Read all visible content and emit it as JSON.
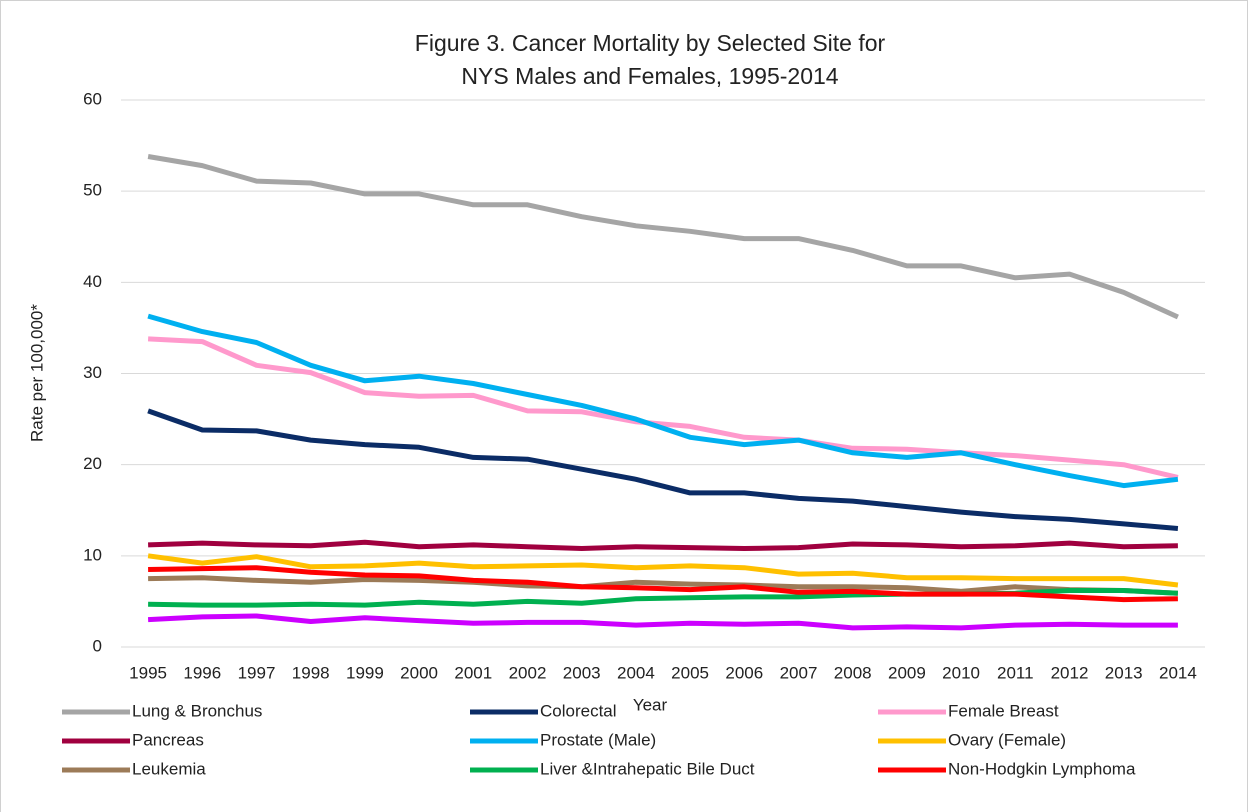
{
  "chart_data": {
    "type": "line",
    "title": [
      "Figure 3. Cancer Mortality by Selected Site for",
      "NYS Males and Females, 1995-2014"
    ],
    "x_label": "Year",
    "y_label": "Rate per 100,000*",
    "categories": [
      "1995",
      "1996",
      "1997",
      "1998",
      "1999",
      "2000",
      "2001",
      "2002",
      "2003",
      "2004",
      "2005",
      "2006",
      "2007",
      "2008",
      "2009",
      "2010",
      "2011",
      "2012",
      "2013",
      "2014"
    ],
    "ylim": [
      0,
      60
    ],
    "yticks": [
      0,
      10,
      20,
      30,
      40,
      50,
      60
    ],
    "grid": true,
    "legend": "bottom",
    "series": [
      {
        "name": "Lung & Bronchus",
        "color": "#a5a5a5",
        "values": [
          53.8,
          52.8,
          51.1,
          50.9,
          49.7,
          49.7,
          48.5,
          48.5,
          47.2,
          46.2,
          45.6,
          44.8,
          44.8,
          43.5,
          41.8,
          41.8,
          40.5,
          40.9,
          38.9,
          36.2
        ]
      },
      {
        "name": "Colorectal",
        "color": "#0b2c66",
        "values": [
          25.9,
          23.8,
          23.7,
          22.7,
          22.2,
          21.9,
          20.8,
          20.6,
          19.5,
          18.4,
          16.9,
          16.9,
          16.3,
          16.0,
          15.4,
          14.8,
          14.3,
          14.0,
          13.5,
          13.0
        ]
      },
      {
        "name": "Female Breast",
        "color": "#ff99cc",
        "values": [
          33.8,
          33.5,
          30.9,
          30.1,
          27.9,
          27.5,
          27.6,
          25.9,
          25.8,
          24.7,
          24.2,
          23.0,
          22.7,
          21.8,
          21.7,
          21.3,
          21.0,
          20.5,
          20.0,
          18.6
        ]
      },
      {
        "name": "Pancreas",
        "color": "#a0003f",
        "values": [
          11.2,
          11.4,
          11.2,
          11.1,
          11.5,
          11.0,
          11.2,
          11.0,
          10.8,
          11.0,
          10.9,
          10.8,
          10.9,
          11.3,
          11.2,
          11.0,
          11.1,
          11.4,
          11.0,
          11.1
        ]
      },
      {
        "name": "Prostate (Male)",
        "color": "#00b0f0",
        "values": [
          36.3,
          34.6,
          33.4,
          30.9,
          29.2,
          29.7,
          28.9,
          27.7,
          26.5,
          25.0,
          23.0,
          22.2,
          22.7,
          21.3,
          20.8,
          21.3,
          20.0,
          18.8,
          17.7,
          18.4
        ]
      },
      {
        "name": "Ovary (Female)",
        "color": "#ffc000",
        "values": [
          10.0,
          9.2,
          9.9,
          8.8,
          8.9,
          9.2,
          8.8,
          8.9,
          9.0,
          8.7,
          8.9,
          8.7,
          8.0,
          8.1,
          7.6,
          7.6,
          7.5,
          7.5,
          7.5,
          6.8
        ]
      },
      {
        "name": "Leukemia",
        "color": "#9c7b58",
        "values": [
          7.5,
          7.6,
          7.3,
          7.1,
          7.4,
          7.3,
          7.1,
          6.7,
          6.6,
          7.1,
          6.9,
          6.8,
          6.6,
          6.6,
          6.5,
          6.1,
          6.6,
          6.3,
          6.2,
          5.9
        ]
      },
      {
        "name": "Liver &Intrahepatic Bile Duct",
        "color": "#00b050",
        "values": [
          4.7,
          4.6,
          4.6,
          4.7,
          4.6,
          4.9,
          4.7,
          5.0,
          4.8,
          5.3,
          5.4,
          5.5,
          5.5,
          5.7,
          5.8,
          5.8,
          5.9,
          6.2,
          6.2,
          5.9
        ]
      },
      {
        "name": "Non-Hodgkin Lymphoma",
        "color": "#ff0000",
        "values": [
          8.5,
          8.6,
          8.7,
          8.2,
          7.9,
          7.8,
          7.3,
          7.1,
          6.6,
          6.5,
          6.3,
          6.6,
          6.0,
          6.1,
          5.8,
          5.8,
          5.8,
          5.5,
          5.2,
          5.3
        ]
      },
      {
        "color": "#cc00ff",
        "values": [
          3.0,
          3.3,
          3.4,
          2.8,
          3.2,
          2.9,
          2.6,
          2.7,
          2.7,
          2.4,
          2.6,
          2.5,
          2.6,
          2.1,
          2.2,
          2.1,
          2.4,
          2.5,
          2.4,
          2.4
        ]
      }
    ]
  }
}
